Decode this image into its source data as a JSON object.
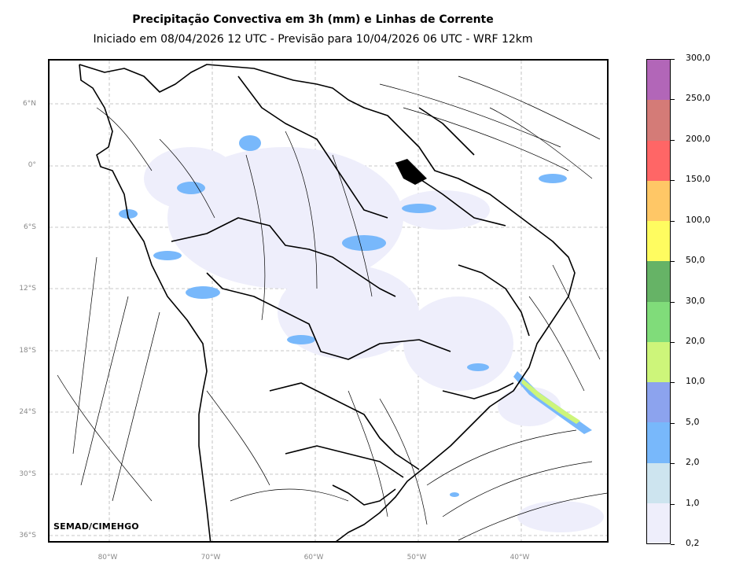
{
  "title": "Precipitação Convectiva em 3h (mm) e Linhas de Corrente",
  "subtitle": "Iniciado em 08/04/2026 12 UTC - Previsão para 10/04/2026 06 UTC - WRF 12km",
  "credit": "SEMAD/CIMEHGO",
  "lat_labels": [
    "6°N",
    "0°",
    "6°S",
    "12°S",
    "18°S",
    "24°S",
    "30°S",
    "36°S"
  ],
  "lon_labels": [
    "80°W",
    "70°W",
    "60°W",
    "50°W",
    "40°W"
  ],
  "colorbar": {
    "labels": [
      "0,2",
      "1,0",
      "2,0",
      "5,0",
      "10,0",
      "20,0",
      "30,0",
      "50,0",
      "100,0",
      "150,0",
      "200,0",
      "250,0",
      "300,0"
    ],
    "colors": [
      "#eeeefb",
      "#cde4ef",
      "#78b8fb",
      "#8ca3ee",
      "#cdf57a",
      "#80dc7a",
      "#66b366",
      "#fffc60",
      "#ffc766",
      "#ff6666",
      "#d47b77",
      "#b266b8"
    ]
  },
  "colors": {
    "light_rain": "#eeeefb",
    "moderate_rain": "#78b8fb",
    "heavy_rain": "#cdf57a",
    "grid": "#b5b5b5"
  }
}
